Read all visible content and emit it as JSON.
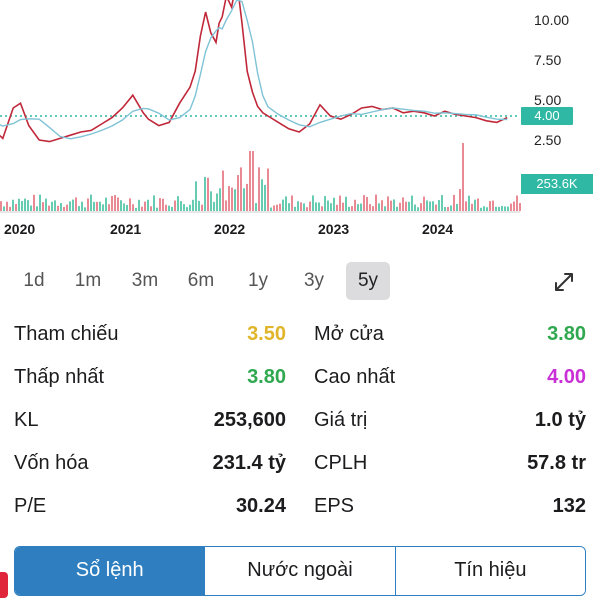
{
  "chart_data": {
    "type": "line",
    "x_ticks": [
      "2020",
      "2021",
      "2022",
      "2023",
      "2024"
    ],
    "y_ticks": [
      "10.00",
      "7.50",
      "5.00",
      "2.50"
    ],
    "ylim": [
      0,
      10.5
    ],
    "current_price_label": "4.00",
    "current_volume_label": "253.6K",
    "series": [
      {
        "x": [
          2019.6,
          2019.75,
          2019.85,
          2019.95,
          2020.05,
          2020.12,
          2020.2,
          2020.3,
          2020.4,
          2020.5,
          2020.6,
          2020.7,
          2020.8,
          2020.9,
          2021.0,
          2021.1,
          2021.2,
          2021.3,
          2021.35,
          2021.45,
          2021.55,
          2021.65,
          2021.75,
          2021.8,
          2021.85,
          2021.9,
          2021.95,
          2022.0,
          2022.03,
          2022.06,
          2022.1,
          2022.15,
          2022.2,
          2022.25,
          2022.3,
          2022.35,
          2022.4,
          2022.45,
          2022.5,
          2022.6,
          2022.7,
          2022.8,
          2022.9,
          2023.0,
          2023.1,
          2023.2,
          2023.3,
          2023.4,
          2023.5,
          2023.6,
          2023.7,
          2023.8,
          2023.9,
          2024.0,
          2024.1,
          2024.2,
          2024.3,
          2024.4,
          2024.5,
          2024.6,
          2024.7,
          2024.8
        ],
        "values": [
          3.9,
          3.8,
          3.2,
          2.6,
          4.5,
          4.8,
          3.4,
          2.5,
          2.4,
          2.6,
          2.8,
          3.0,
          3.1,
          3.5,
          3.9,
          4.5,
          5.3,
          4.2,
          3.8,
          3.4,
          3.6,
          4.8,
          5.8,
          6.8,
          9.0,
          10.5,
          9.2,
          8.6,
          9.8,
          10.2,
          11.5,
          10.8,
          12.5,
          9.8,
          6.8,
          5.5,
          4.6,
          4.2,
          4.0,
          3.6,
          3.2,
          3.0,
          3.5,
          4.7,
          4.0,
          3.8,
          4.1,
          4.5,
          4.6,
          4.4,
          4.5,
          4.2,
          4.3,
          4.2,
          4.0,
          4.3,
          4.1,
          4.0,
          3.9,
          3.7,
          3.6,
          3.9
        ]
      }
    ]
  },
  "ranges": [
    {
      "label": "1d",
      "active": false
    },
    {
      "label": "1m",
      "active": false
    },
    {
      "label": "3m",
      "active": false
    },
    {
      "label": "6m",
      "active": false
    },
    {
      "label": "1y",
      "active": false
    },
    {
      "label": "3y",
      "active": false
    },
    {
      "label": "5y",
      "active": true
    }
  ],
  "stats": {
    "tham_chieu": {
      "label": "Tham chiếu",
      "value": "3.50",
      "color": "#e0b52a"
    },
    "mo_cua": {
      "label": "Mở cửa",
      "value": "3.80",
      "color": "#2fa84f"
    },
    "thap_nhat": {
      "label": "Thấp nhất",
      "value": "3.80",
      "color": "#2fa84f"
    },
    "cao_nhat": {
      "label": "Cao nhất",
      "value": "4.00",
      "color": "#c930d6"
    },
    "kl": {
      "label": "KL",
      "value": "253,600"
    },
    "gia_tri": {
      "label": "Giá trị",
      "value": "1.0 tỷ"
    },
    "von_hoa": {
      "label": "Vốn hóa",
      "value": "231.4 tỷ"
    },
    "cplh": {
      "label": "CPLH",
      "value": "57.8 tr"
    },
    "pe": {
      "label": "P/E",
      "value": "30.24"
    },
    "eps": {
      "label": "EPS",
      "value": "132"
    }
  },
  "tabs": [
    {
      "label": "Sổ lệnh",
      "active": true
    },
    {
      "label": "Nước ngoài",
      "active": false
    },
    {
      "label": "Tín hiệu",
      "active": false
    }
  ],
  "icons": {
    "expand": "expand-icon"
  }
}
